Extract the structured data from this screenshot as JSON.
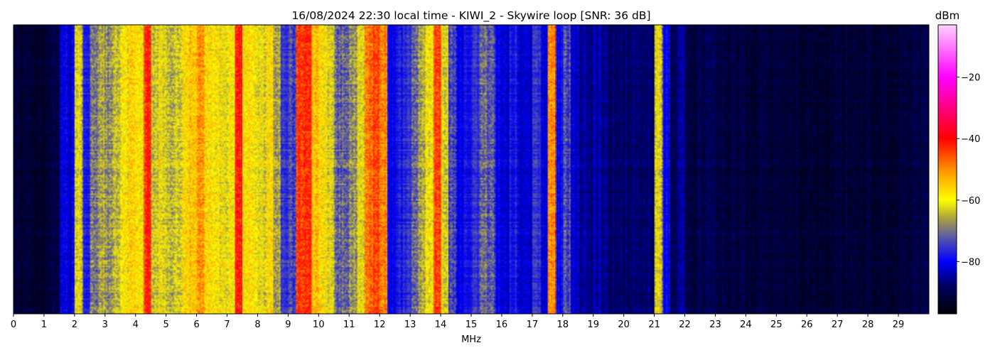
{
  "chart_data": {
    "type": "heatmap",
    "title": "16/08/2024 22:30 local time - KIWI_2 - Skywire loop [SNR: 36 dB]",
    "xlabel": "MHz",
    "xlim": [
      0,
      30
    ],
    "x_ticks": [
      "0",
      "1",
      "2",
      "3",
      "4",
      "5",
      "6",
      "7",
      "8",
      "9",
      "10",
      "11",
      "12",
      "13",
      "14",
      "15",
      "16",
      "17",
      "18",
      "19",
      "20",
      "21",
      "22",
      "23",
      "24",
      "25",
      "26",
      "27",
      "28",
      "29"
    ],
    "colorbar": {
      "label": "dBm",
      "range": [
        -97,
        -3
      ],
      "ticks": [
        "−20",
        "−40",
        "−60",
        "−80"
      ],
      "tick_values": [
        -20,
        -40,
        -60,
        -80
      ],
      "colormap_stops": [
        {
          "dbm": -97,
          "color": "#000000"
        },
        {
          "dbm": -88,
          "color": "#000060"
        },
        {
          "dbm": -80,
          "color": "#0000ff"
        },
        {
          "dbm": -72,
          "color": "#5a5aa8"
        },
        {
          "dbm": -66,
          "color": "#a8a040"
        },
        {
          "dbm": -60,
          "color": "#ffff00"
        },
        {
          "dbm": -50,
          "color": "#ff9000"
        },
        {
          "dbm": -40,
          "color": "#ff0000"
        },
        {
          "dbm": -30,
          "color": "#ff0080"
        },
        {
          "dbm": -20,
          "color": "#ff00ff"
        },
        {
          "dbm": -3,
          "color": "#ffd0ff"
        }
      ]
    },
    "bin_width_mhz": 0.25,
    "mean_level_dbm": [
      -92,
      -92,
      -92,
      -92,
      -92,
      -90,
      -82,
      -82,
      -62,
      -78,
      -70,
      -66,
      -68,
      -64,
      -60,
      -57,
      -60,
      -42,
      -63,
      -62,
      -64,
      -62,
      -58,
      -55,
      -52,
      -58,
      -60,
      -62,
      -60,
      -41,
      -58,
      -60,
      -62,
      -58,
      -66,
      -76,
      -74,
      -44,
      -42,
      -55,
      -58,
      -62,
      -72,
      -70,
      -68,
      -62,
      -48,
      -45,
      -50,
      -80,
      -78,
      -76,
      -72,
      -66,
      -60,
      -44,
      -62,
      -74,
      -80,
      -78,
      -76,
      -70,
      -72,
      -80,
      -82,
      -78,
      -83,
      -82,
      -76,
      -82,
      -50,
      -80,
      -74,
      -82,
      -85,
      -86,
      -84,
      -87,
      -88,
      -88,
      -88,
      -88,
      -88,
      -88,
      -62,
      -80,
      -88,
      -86,
      -90,
      -90,
      -90,
      -90,
      -91,
      -91,
      -91,
      -91,
      -92,
      -92,
      -92,
      -92,
      -92,
      -92,
      -92,
      -92,
      -92,
      -92,
      -92,
      -92,
      -92,
      -92,
      -92,
      -92,
      -92,
      -92,
      -92,
      -92,
      -91,
      -91,
      -91,
      -90
    ]
  }
}
